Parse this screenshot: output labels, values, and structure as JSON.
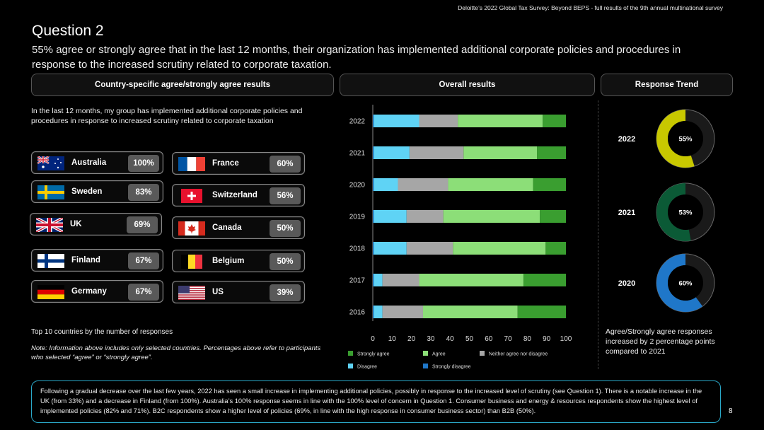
{
  "source": "Deloitte’s 2022 Global Tax Survey: Beyond BEPS  - full results of the 9th annual multinational survey",
  "question_title": "Question 2",
  "question_subtitle": "55% agree or strongly agree that in the last 12 months, their organization has implemented additional corporate policies and procedures in response to the increased scrutiny related to corporate taxation.",
  "panels": {
    "country": "Country-specific agree/strongly agree results",
    "overall": "Overall results",
    "trend": "Response Trend"
  },
  "intro_text": "In the last 12 months, my group has implemented additional corporate policies and procedures in response to increased scrutiny related to corporate taxation",
  "countries": [
    {
      "name": "Australia",
      "pct": "100%",
      "flag": "australia-flag-icon"
    },
    {
      "name": "France",
      "pct": "60%",
      "flag": "france-flag-icon"
    },
    {
      "name": "Sweden",
      "pct": "83%",
      "flag": "sweden-flag-icon"
    },
    {
      "name": "Switzerland",
      "pct": "56%",
      "flag": "switzerland-flag-icon"
    },
    {
      "name": "UK",
      "pct": "69%",
      "flag": "uk-flag-icon"
    },
    {
      "name": "Canada",
      "pct": "50%",
      "flag": "canada-flag-icon"
    },
    {
      "name": "Finland",
      "pct": "67%",
      "flag": "finland-flag-icon"
    },
    {
      "name": "Belgium",
      "pct": "50%",
      "flag": "belgium-flag-icon"
    },
    {
      "name": "Germany",
      "pct": "67%",
      "flag": "germany-flag-icon"
    },
    {
      "name": "US",
      "pct": "39%",
      "flag": "us-flag-icon"
    }
  ],
  "top10_text": "Top 10 countries by the number of responses",
  "note_text": "Note: Information above includes only selected countries. Percentages above refer to participants who selected “agree” or “strongly agree”.",
  "chart_data": [
    {
      "type": "bar",
      "orientation": "horizontal-stacked",
      "categories": [
        "2022",
        "2021",
        "2020",
        "2019",
        "2018",
        "2017",
        "2016"
      ],
      "xticks": [
        "0",
        "10",
        "20",
        "30",
        "40",
        "50",
        "60",
        "70",
        "80",
        "90",
        "100"
      ],
      "xlim": [
        0,
        100
      ],
      "legend_position": "bottom",
      "series": [
        {
          "name": "Strongly disagree",
          "color": "#1f77c9",
          "values": [
            0.5,
            0.5,
            0.5,
            0.5,
            0.5,
            0.5,
            0.5
          ]
        },
        {
          "name": "Disagree",
          "color": "#5fd3f5",
          "values": [
            23.5,
            18.5,
            12.5,
            17,
            17,
            4.5,
            4.5
          ]
        },
        {
          "name": "Neither agree nor disagree",
          "color": "#a6a6a6",
          "values": [
            20,
            28,
            26,
            19,
            24,
            19,
            21
          ]
        },
        {
          "name": "Agree",
          "color": "#8cde78",
          "values": [
            44,
            38,
            44,
            50,
            48,
            54,
            49
          ]
        },
        {
          "name": "Strongly agree",
          "color": "#3a9e30",
          "values": [
            12,
            15,
            17,
            13.5,
            10.5,
            22,
            25
          ]
        }
      ],
      "legend_order": [
        "Strongly agree",
        "Agree",
        "Neither agree nor disagree",
        "Disagree",
        "Strongly disagree"
      ]
    },
    {
      "type": "pie",
      "subtype": "donut",
      "items": [
        {
          "year": "2022",
          "label": "55%",
          "value": 55,
          "color": "#c8c800"
        },
        {
          "year": "2021",
          "label": "53%",
          "value": 53,
          "color": "#0b5a36"
        },
        {
          "year": "2020",
          "label": "60%",
          "value": 60,
          "color": "#1f77c9"
        }
      ]
    }
  ],
  "trend_note": "Agree/Strongly agree responses increased by 2 percentage points compared to 2021",
  "footer_text": "Following a gradual decrease over the last few years, 2022 has seen a small increase in implementing additional policies, possibly in response to the increased level of scrutiny (see Question 1). There is a notable increase in the UK (from 33%) and a decrease in Finland (from 100%). Australia’s 100% response seems in line with the 100% level of concern in Question 1. Consumer business and energy & resources respondents show the highest level of implemented policies (82% and 71%). B2C respondents show a higher level of policies (69%, in line with the high response in consumer business sector) than B2B (50%).",
  "page_number": "8"
}
